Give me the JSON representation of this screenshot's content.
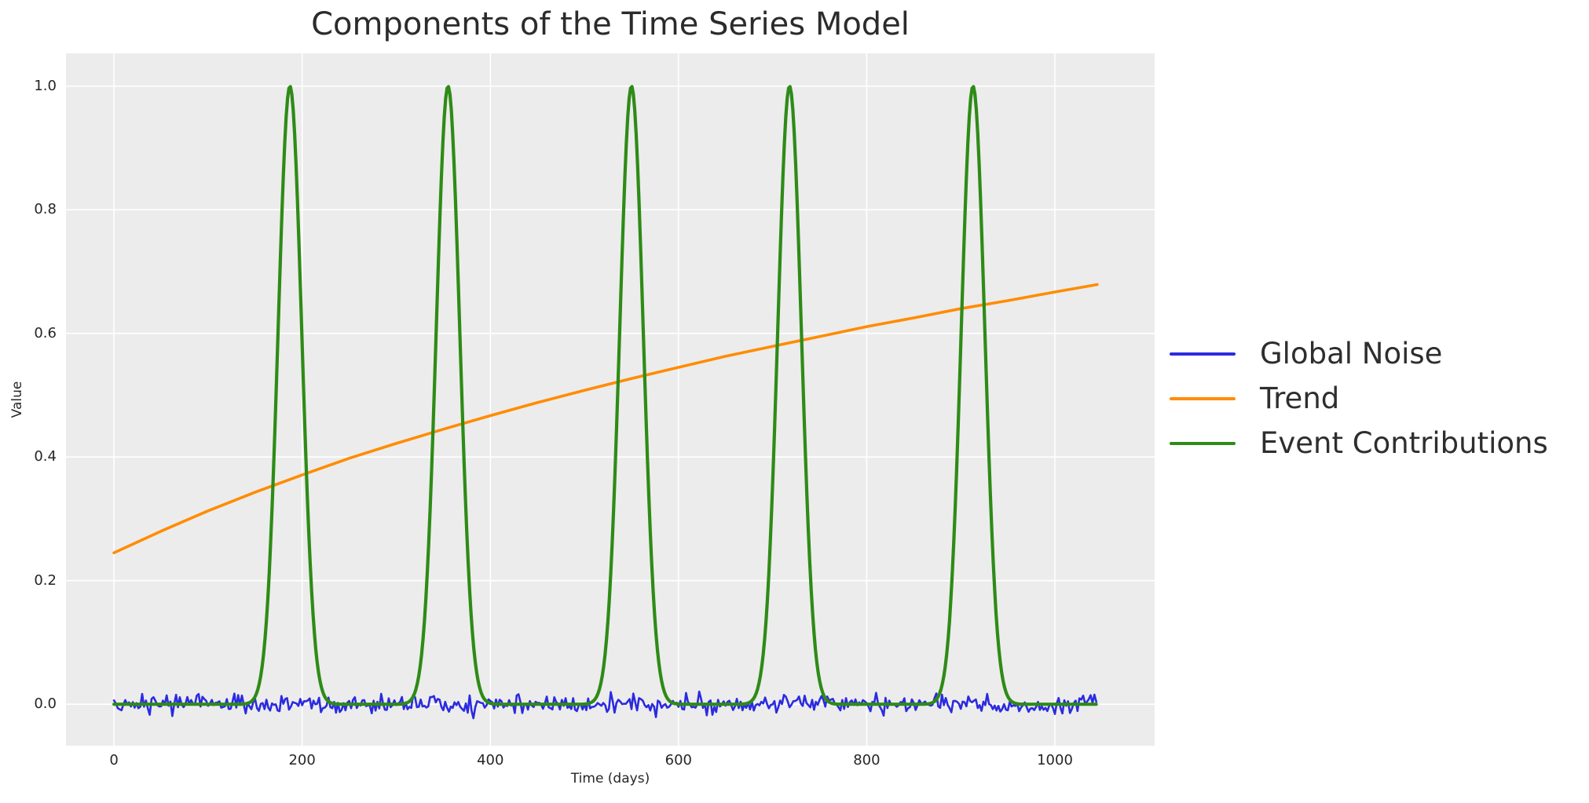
{
  "chart_data": {
    "type": "line",
    "title": "Components of the Time Series Model",
    "xlabel": "Time (days)",
    "ylabel": "Value",
    "x_ticks": [
      0,
      200,
      400,
      600,
      800,
      1000
    ],
    "y_tick_labels": [
      "0.0",
      "0.2",
      "0.4",
      "0.6",
      "0.8",
      "1.0"
    ],
    "xlim": [
      -51,
      1106
    ],
    "ylim": [
      -0.067,
      1.053
    ],
    "t_start": 0,
    "t_end": 1045,
    "grid": true,
    "grid_color": "#ffffff",
    "plot_bg_color": "#ececec",
    "text_color": "#262626",
    "legend_position": "center-right outside axes, no frame",
    "series": [
      {
        "name": "Global Noise",
        "color": "#2b2be0",
        "kind": "noise",
        "mean": 0,
        "stddev": 0.008,
        "seed": 20230917,
        "step_days": 2
      },
      {
        "name": "Trend",
        "color": "#ff8c00",
        "kind": "curve",
        "points": [
          [
            0,
            0.245
          ],
          [
            50,
            0.28
          ],
          [
            100,
            0.313
          ],
          [
            150,
            0.343
          ],
          [
            200,
            0.371
          ],
          [
            250,
            0.398
          ],
          [
            300,
            0.422
          ],
          [
            350,
            0.445
          ],
          [
            400,
            0.467
          ],
          [
            450,
            0.488
          ],
          [
            500,
            0.508
          ],
          [
            550,
            0.527
          ],
          [
            600,
            0.545
          ],
          [
            650,
            0.563
          ],
          [
            700,
            0.579
          ],
          [
            750,
            0.595
          ],
          [
            800,
            0.611
          ],
          [
            850,
            0.625
          ],
          [
            900,
            0.64
          ],
          [
            950,
            0.653
          ],
          [
            1000,
            0.667
          ],
          [
            1045,
            0.679
          ]
        ]
      },
      {
        "name": "Event Contributions",
        "color": "#2e8b17",
        "kind": "gaussian_events",
        "amplitude": 1.0,
        "sigma_days": 12.5,
        "event_centers_days": [
          187,
          355,
          550,
          718,
          913
        ]
      }
    ]
  }
}
